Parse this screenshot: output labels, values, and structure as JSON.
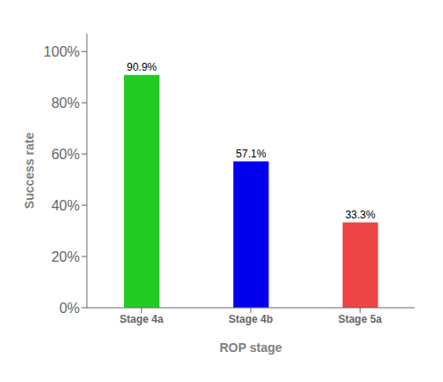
{
  "chart_data": {
    "type": "bar",
    "categories": [
      "Stage 4a",
      "Stage 4b",
      "Stage 5a"
    ],
    "values": [
      90.9,
      57.1,
      33.3
    ],
    "value_labels": [
      "90.9%",
      "57.1%",
      "33.3%"
    ],
    "data_labels": true,
    "colors": [
      "#22cc22",
      "#0000ee",
      "#ee4444"
    ],
    "xlabel": "ROP stage",
    "ylabel": "Success rate",
    "ylim": [
      0,
      107
    ],
    "yticks": [
      {
        "value": 0,
        "label": "0%"
      },
      {
        "value": 20,
        "label": "20%"
      },
      {
        "value": 40,
        "label": "40%"
      },
      {
        "value": 60,
        "label": "60%"
      },
      {
        "value": 80,
        "label": "80%"
      },
      {
        "value": 100,
        "label": "100%"
      }
    ],
    "grid": false
  }
}
